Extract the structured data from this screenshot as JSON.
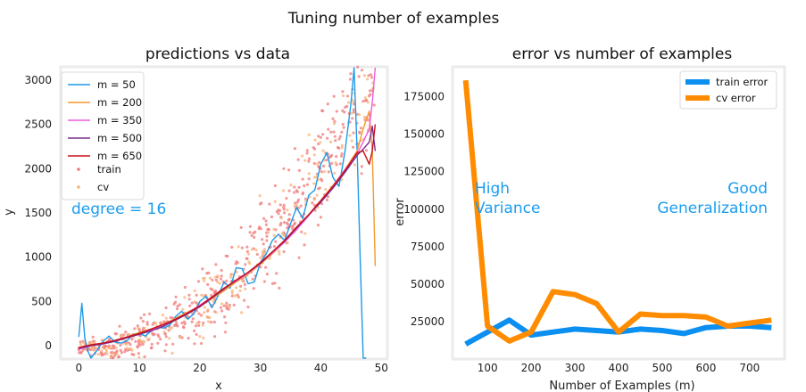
{
  "suptitle": "Tuning number of examples",
  "chart_data": [
    {
      "type": "line",
      "title": "predictions vs data",
      "xlabel": "x",
      "ylabel": "y",
      "xlim": [
        -3,
        51
      ],
      "ylim": [
        -150,
        3150
      ],
      "xticks": [
        "0",
        "10",
        "20",
        "30",
        "40",
        "50"
      ],
      "yticks": [
        "0",
        "500",
        "1000",
        "1500",
        "2000",
        "2500",
        "3000"
      ],
      "grid": false,
      "legend_position": "top-left",
      "annotation": "degree = 16",
      "annotation_color": "#1a9cf0",
      "series": [
        {
          "name": "m = 50",
          "color": "#1f9ae8",
          "x": [
            0,
            0.5,
            1,
            1.5,
            2,
            3,
            4,
            5,
            6,
            7,
            8,
            9,
            10,
            11,
            12,
            13,
            14,
            15,
            16,
            17,
            18,
            19,
            20,
            21,
            22,
            23,
            24,
            25,
            26,
            27,
            28,
            29,
            30,
            31,
            32,
            33,
            34,
            35,
            36,
            37,
            38,
            39,
            40,
            41,
            42,
            43,
            44,
            45,
            45.5,
            46,
            46.5,
            47,
            47.5
          ],
          "y": [
            100,
            480,
            80,
            -60,
            -150,
            -50,
            50,
            110,
            40,
            30,
            60,
            130,
            140,
            110,
            170,
            210,
            200,
            230,
            330,
            390,
            300,
            360,
            500,
            560,
            430,
            560,
            720,
            650,
            880,
            870,
            700,
            720,
            940,
            1040,
            1190,
            1260,
            1190,
            1380,
            1560,
            1440,
            1700,
            1760,
            2050,
            2180,
            1900,
            1800,
            2200,
            2750,
            3150,
            2200,
            1000,
            -200,
            -200
          ]
        },
        {
          "name": "m = 200",
          "color": "#f39a2a",
          "x": [
            0,
            2,
            4,
            6,
            8,
            10,
            12,
            14,
            16,
            18,
            20,
            22,
            24,
            26,
            28,
            30,
            32,
            34,
            36,
            38,
            40,
            42,
            44,
            46,
            47,
            48,
            48.5,
            49
          ],
          "y": [
            -20,
            10,
            30,
            60,
            100,
            150,
            190,
            240,
            310,
            380,
            450,
            530,
            620,
            720,
            810,
            920,
            1040,
            1170,
            1320,
            1480,
            1640,
            1810,
            1990,
            2200,
            2450,
            2650,
            2200,
            900
          ]
        },
        {
          "name": "m = 350",
          "color": "#f05ce0",
          "x": [
            0,
            2,
            4,
            6,
            8,
            10,
            12,
            14,
            16,
            18,
            20,
            22,
            24,
            26,
            28,
            30,
            32,
            34,
            36,
            38,
            40,
            42,
            44,
            46,
            47,
            48,
            48.5,
            49
          ],
          "y": [
            -40,
            0,
            30,
            60,
            100,
            140,
            180,
            230,
            300,
            370,
            460,
            550,
            650,
            730,
            820,
            930,
            1050,
            1170,
            1310,
            1470,
            1630,
            1800,
            1990,
            2170,
            2300,
            2450,
            2750,
            3150
          ]
        },
        {
          "name": "m = 500",
          "color": "#7a2e8e",
          "x": [
            0,
            2,
            4,
            6,
            8,
            10,
            12,
            14,
            16,
            18,
            20,
            22,
            24,
            26,
            28,
            30,
            32,
            34,
            36,
            38,
            40,
            42,
            44,
            46,
            47,
            48,
            48.5,
            49
          ],
          "y": [
            -30,
            0,
            20,
            50,
            90,
            130,
            170,
            220,
            290,
            360,
            440,
            540,
            640,
            740,
            830,
            930,
            1060,
            1180,
            1330,
            1480,
            1620,
            1780,
            1960,
            2150,
            2220,
            2300,
            2480,
            2200
          ]
        },
        {
          "name": "m = 650",
          "color": "#c8111a",
          "x": [
            0,
            2,
            4,
            6,
            8,
            10,
            12,
            14,
            16,
            18,
            20,
            22,
            24,
            26,
            28,
            30,
            32,
            34,
            36,
            38,
            40,
            42,
            44,
            46,
            47,
            48,
            48.5,
            49
          ],
          "y": [
            -20,
            10,
            30,
            60,
            100,
            140,
            190,
            240,
            300,
            370,
            450,
            550,
            650,
            740,
            830,
            940,
            1060,
            1190,
            1340,
            1480,
            1640,
            1800,
            1980,
            2180,
            2200,
            2050,
            2200,
            2500
          ]
        }
      ],
      "scatter": [
        {
          "name": "train",
          "color": "#f07a7a"
        },
        {
          "name": "cv",
          "color": "#f7b37a"
        }
      ]
    },
    {
      "type": "line",
      "title": "error vs number of examples",
      "xlabel": "Number of Examples (m)",
      "ylabel": "error",
      "xlim": [
        20,
        780
      ],
      "ylim": [
        0,
        195000
      ],
      "xticks": [
        100,
        200,
        300,
        400,
        500,
        600,
        700
      ],
      "yticks": [
        25000,
        50000,
        75000,
        100000,
        125000,
        150000,
        175000
      ],
      "grid": false,
      "legend_position": "top-right",
      "annotations": [
        {
          "text": "High\nVariance",
          "color": "#1a9cf0"
        },
        {
          "text": "Good\nGeneralization",
          "color": "#1a9cf0"
        }
      ],
      "x": [
        50,
        100,
        150,
        200,
        250,
        300,
        350,
        400,
        450,
        500,
        550,
        600,
        650,
        700,
        750
      ],
      "series": [
        {
          "name": "train error",
          "color": "#0b8ff0",
          "values": [
            10000,
            18000,
            26000,
            16000,
            18000,
            20000,
            19000,
            18000,
            20000,
            19000,
            17000,
            21000,
            22000,
            22000,
            21000
          ]
        },
        {
          "name": "cv error",
          "color": "#ff8c00",
          "values": [
            186000,
            22000,
            12000,
            18000,
            45000,
            43000,
            37000,
            18000,
            30000,
            29000,
            29000,
            28000,
            22000,
            24000,
            26000
          ]
        }
      ]
    }
  ]
}
